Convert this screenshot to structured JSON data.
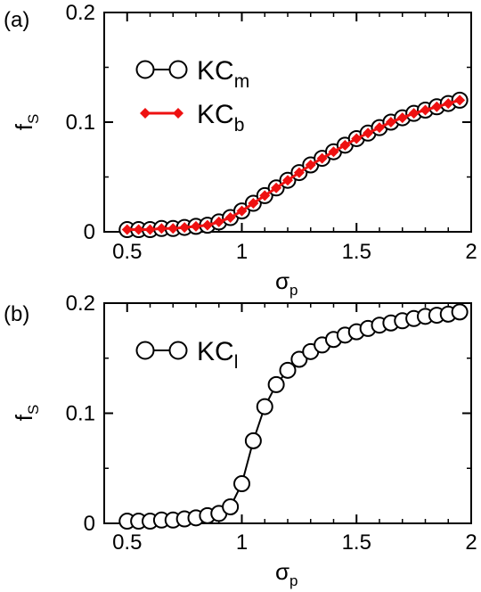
{
  "chart_data": [
    {
      "panel_label": "(a)",
      "type": "scatter",
      "xlabel_main": "σ",
      "xlabel_sub": "p",
      "ylabel_main": "f",
      "ylabel_sub": "S",
      "xlim": [
        0.4,
        2.0
      ],
      "ylim": [
        0,
        0.2
      ],
      "xticks": [
        0.5,
        1,
        1.5,
        2
      ],
      "xtick_labels": [
        "0.5",
        "1",
        "1.5",
        "2"
      ],
      "yticks": [
        0,
        0.1,
        0.2
      ],
      "ytick_labels": [
        "0",
        "0.1",
        "0.2"
      ],
      "legend_position": "top-left",
      "series": [
        {
          "name_main": "KC",
          "name_sub": "m",
          "marker": "open-circle",
          "color": "#000000",
          "x": [
            0.5,
            0.55,
            0.6,
            0.65,
            0.7,
            0.75,
            0.8,
            0.85,
            0.9,
            0.95,
            1.0,
            1.05,
            1.1,
            1.15,
            1.2,
            1.25,
            1.3,
            1.35,
            1.4,
            1.45,
            1.5,
            1.55,
            1.6,
            1.65,
            1.7,
            1.75,
            1.8,
            1.85,
            1.9,
            1.95
          ],
          "y": [
            0.002,
            0.002,
            0.002,
            0.003,
            0.003,
            0.004,
            0.005,
            0.006,
            0.009,
            0.013,
            0.019,
            0.026,
            0.033,
            0.04,
            0.047,
            0.054,
            0.061,
            0.067,
            0.073,
            0.079,
            0.085,
            0.09,
            0.095,
            0.1,
            0.104,
            0.108,
            0.111,
            0.114,
            0.117,
            0.12
          ]
        },
        {
          "name_main": "KC",
          "name_sub": "b",
          "marker": "filled-diamond",
          "color": "#ee1111",
          "x": [
            0.5,
            0.55,
            0.6,
            0.65,
            0.7,
            0.75,
            0.8,
            0.85,
            0.9,
            0.95,
            1.0,
            1.05,
            1.1,
            1.15,
            1.2,
            1.25,
            1.3,
            1.35,
            1.4,
            1.45,
            1.5,
            1.55,
            1.6,
            1.65,
            1.7,
            1.75,
            1.8,
            1.85,
            1.9,
            1.95
          ],
          "y": [
            0.002,
            0.002,
            0.002,
            0.003,
            0.003,
            0.004,
            0.005,
            0.006,
            0.009,
            0.013,
            0.019,
            0.026,
            0.033,
            0.04,
            0.047,
            0.054,
            0.061,
            0.067,
            0.073,
            0.079,
            0.085,
            0.09,
            0.095,
            0.1,
            0.104,
            0.108,
            0.111,
            0.114,
            0.117,
            0.12
          ]
        }
      ]
    },
    {
      "panel_label": "(b)",
      "type": "scatter",
      "xlabel_main": "σ",
      "xlabel_sub": "p",
      "ylabel_main": "f",
      "ylabel_sub": "S",
      "xlim": [
        0.4,
        2.0
      ],
      "ylim": [
        0,
        0.2
      ],
      "xticks": [
        0.5,
        1,
        1.5,
        2
      ],
      "xtick_labels": [
        "0.5",
        "1",
        "1.5",
        "2"
      ],
      "yticks": [
        0,
        0.1,
        0.2
      ],
      "ytick_labels": [
        "0",
        "0.1",
        "0.2"
      ],
      "legend_position": "top-left",
      "series": [
        {
          "name_main": "KC",
          "name_sub": "l",
          "marker": "open-circle",
          "color": "#000000",
          "x": [
            0.5,
            0.55,
            0.6,
            0.65,
            0.7,
            0.75,
            0.8,
            0.85,
            0.9,
            0.95,
            1.0,
            1.05,
            1.1,
            1.15,
            1.2,
            1.25,
            1.3,
            1.35,
            1.4,
            1.45,
            1.5,
            1.55,
            1.6,
            1.65,
            1.7,
            1.75,
            1.8,
            1.85,
            1.9,
            1.95
          ],
          "y": [
            0.002,
            0.002,
            0.002,
            0.003,
            0.003,
            0.004,
            0.005,
            0.007,
            0.009,
            0.015,
            0.036,
            0.075,
            0.106,
            0.126,
            0.139,
            0.149,
            0.156,
            0.162,
            0.167,
            0.171,
            0.174,
            0.177,
            0.18,
            0.182,
            0.184,
            0.186,
            0.188,
            0.189,
            0.19,
            0.192
          ]
        }
      ]
    }
  ]
}
